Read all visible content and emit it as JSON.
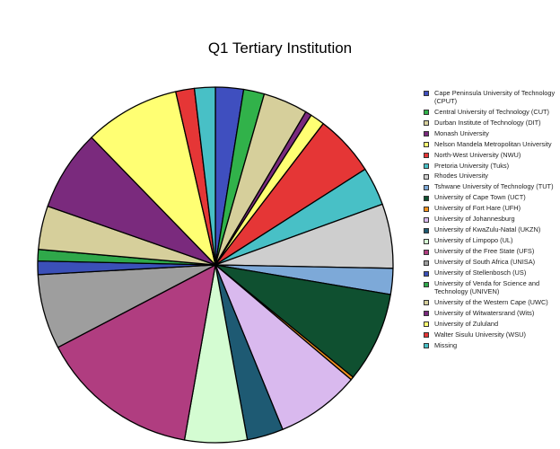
{
  "chart_data": {
    "type": "pie",
    "title": "Q1 Tertiary Institution",
    "legend_position": "right",
    "start_angle": "top, clockwise",
    "slices": [
      {
        "label": "Cape Peninsula University of Technology (CPUT)",
        "value": 2.7,
        "color": "#3f4fbf"
      },
      {
        "label": "Central University of Technology (CUT)",
        "value": 2.0,
        "color": "#31b24a"
      },
      {
        "label": "Durban Institute of Technology (DIT)",
        "value": 4.3,
        "color": "#d6cf9b"
      },
      {
        "label": "Monash University",
        "value": 0.6,
        "color": "#7a2a7d"
      },
      {
        "label": "Nelson Mandela Metropolitan University",
        "value": 1.4,
        "color": "#ffff73"
      },
      {
        "label": "North-West University (NWU)",
        "value": 5.9,
        "color": "#e53636"
      },
      {
        "label": "Pretoria University (Tuks)",
        "value": 3.7,
        "color": "#48c0c6"
      },
      {
        "label": "Rhodes University",
        "value": 6.2,
        "color": "#cecece"
      },
      {
        "label": "Tshwane University of Technology (TUT)",
        "value": 2.5,
        "color": "#7da9d8"
      },
      {
        "label": "University of Cape Town (UCT)",
        "value": 8.7,
        "color": "#0f5030"
      },
      {
        "label": "University of Fort Hare (UFH)",
        "value": 0.3,
        "color": "#f5931e"
      },
      {
        "label": "University of Johannesburg",
        "value": 8.1,
        "color": "#d9b9ee"
      },
      {
        "label": "University of KwaZulu-Natal (UKZN)",
        "value": 3.5,
        "color": "#1e5a73"
      },
      {
        "label": "University of Limpopo (UL)",
        "value": 6.0,
        "color": "#d4fcd2"
      },
      {
        "label": "University of the Free State (UFS)",
        "value": 15.4,
        "color": "#b03d80"
      },
      {
        "label": "University of South Africa (UNISA)",
        "value": 7.2,
        "color": "#9e9e9e"
      },
      {
        "label": "University of Stellenbosch (US)",
        "value": 1.3,
        "color": "#3b50b8"
      },
      {
        "label": "University of Venda for Science and Technology (UNIVEN)",
        "value": 1.1,
        "color": "#2fa84a"
      },
      {
        "label": "University of the Western Cape (UWC)",
        "value": 4.2,
        "color": "#d6cf9b"
      },
      {
        "label": "University of Witwatersrand (Wits)",
        "value": 7.8,
        "color": "#7a2a7d"
      },
      {
        "label": "University of Zululand",
        "value": 9.2,
        "color": "#ffff73"
      },
      {
        "label": "Walter Sisulu University (WSU)",
        "value": 1.8,
        "color": "#e53636"
      },
      {
        "label": "Missing",
        "value": 2.0,
        "color": "#48c0c6"
      }
    ]
  }
}
